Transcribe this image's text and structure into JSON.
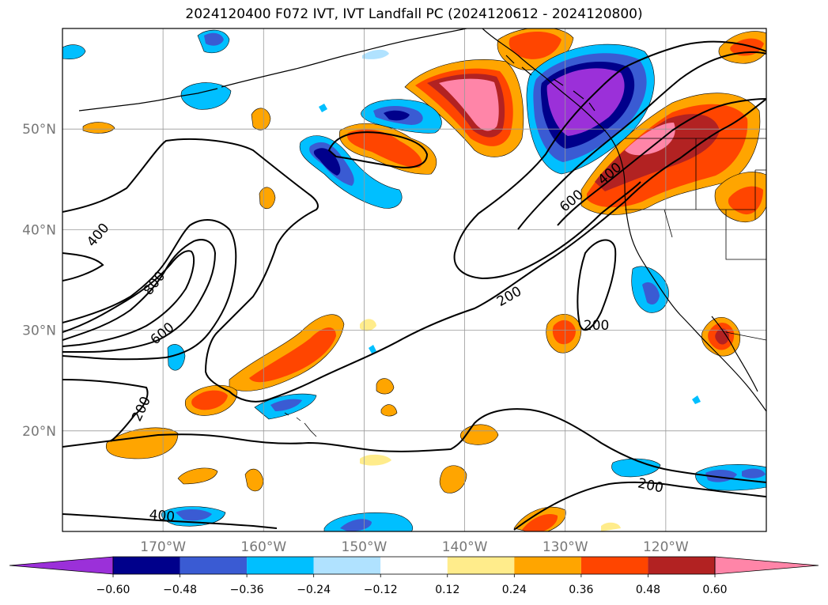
{
  "title": "2024120400 F072 IVT, IVT Landfall PC (2024120612 - 2024120800)",
  "map": {
    "projection": "lat-lon",
    "lon_range": [
      -180,
      -110
    ],
    "lat_range": [
      10,
      60
    ],
    "lon_ticks": [
      {
        "value": -170,
        "label": "170°W"
      },
      {
        "value": -160,
        "label": "160°W"
      },
      {
        "value": -150,
        "label": "150°W"
      },
      {
        "value": -140,
        "label": "140°W"
      },
      {
        "value": -130,
        "label": "130°W"
      },
      {
        "value": -120,
        "label": "120°W"
      }
    ],
    "lat_ticks": [
      {
        "value": 20,
        "label": "20°N"
      },
      {
        "value": 30,
        "label": "30°N"
      },
      {
        "value": 40,
        "label": "40°N"
      },
      {
        "value": 50,
        "label": "50°N"
      }
    ],
    "grid": true
  },
  "contour_labels": [
    {
      "text": "400",
      "lon": -176.5,
      "lat": 39.5,
      "rot": -50
    },
    {
      "text": "800",
      "lon": -170.9,
      "lat": 34.7,
      "rot": -52
    },
    {
      "text": "600",
      "lon": -170.1,
      "lat": 29.7,
      "rot": -40
    },
    {
      "text": "200",
      "lon": -172.2,
      "lat": 22.2,
      "rot": -65
    },
    {
      "text": "400",
      "lon": -170.1,
      "lat": 11.6,
      "rot": 5
    },
    {
      "text": "600",
      "lon": -129.4,
      "lat": 42.9,
      "rot": -40
    },
    {
      "text": "400",
      "lon": -125.6,
      "lat": 45.6,
      "rot": -40
    },
    {
      "text": "200",
      "lon": -135.6,
      "lat": 33.4,
      "rot": -30
    },
    {
      "text": "200",
      "lon": -126.9,
      "lat": 30.5,
      "rot": 0
    },
    {
      "text": "200",
      "lon": -121.5,
      "lat": 14.6,
      "rot": 12
    }
  ],
  "colorbar": {
    "ticks": [
      "−0.60",
      "−0.48",
      "−0.36",
      "−0.24",
      "−0.12",
      "0.12",
      "0.24",
      "0.36",
      "0.48",
      "0.60"
    ],
    "colors": [
      "#9b30d9",
      "#00008b",
      "#3a5bd3",
      "#00bfff",
      "#b0e2ff",
      "#ffffff",
      "#ffec8b",
      "#ffa500",
      "#ff4500",
      "#b22222",
      "#ff85a8"
    ],
    "extend": "both"
  }
}
